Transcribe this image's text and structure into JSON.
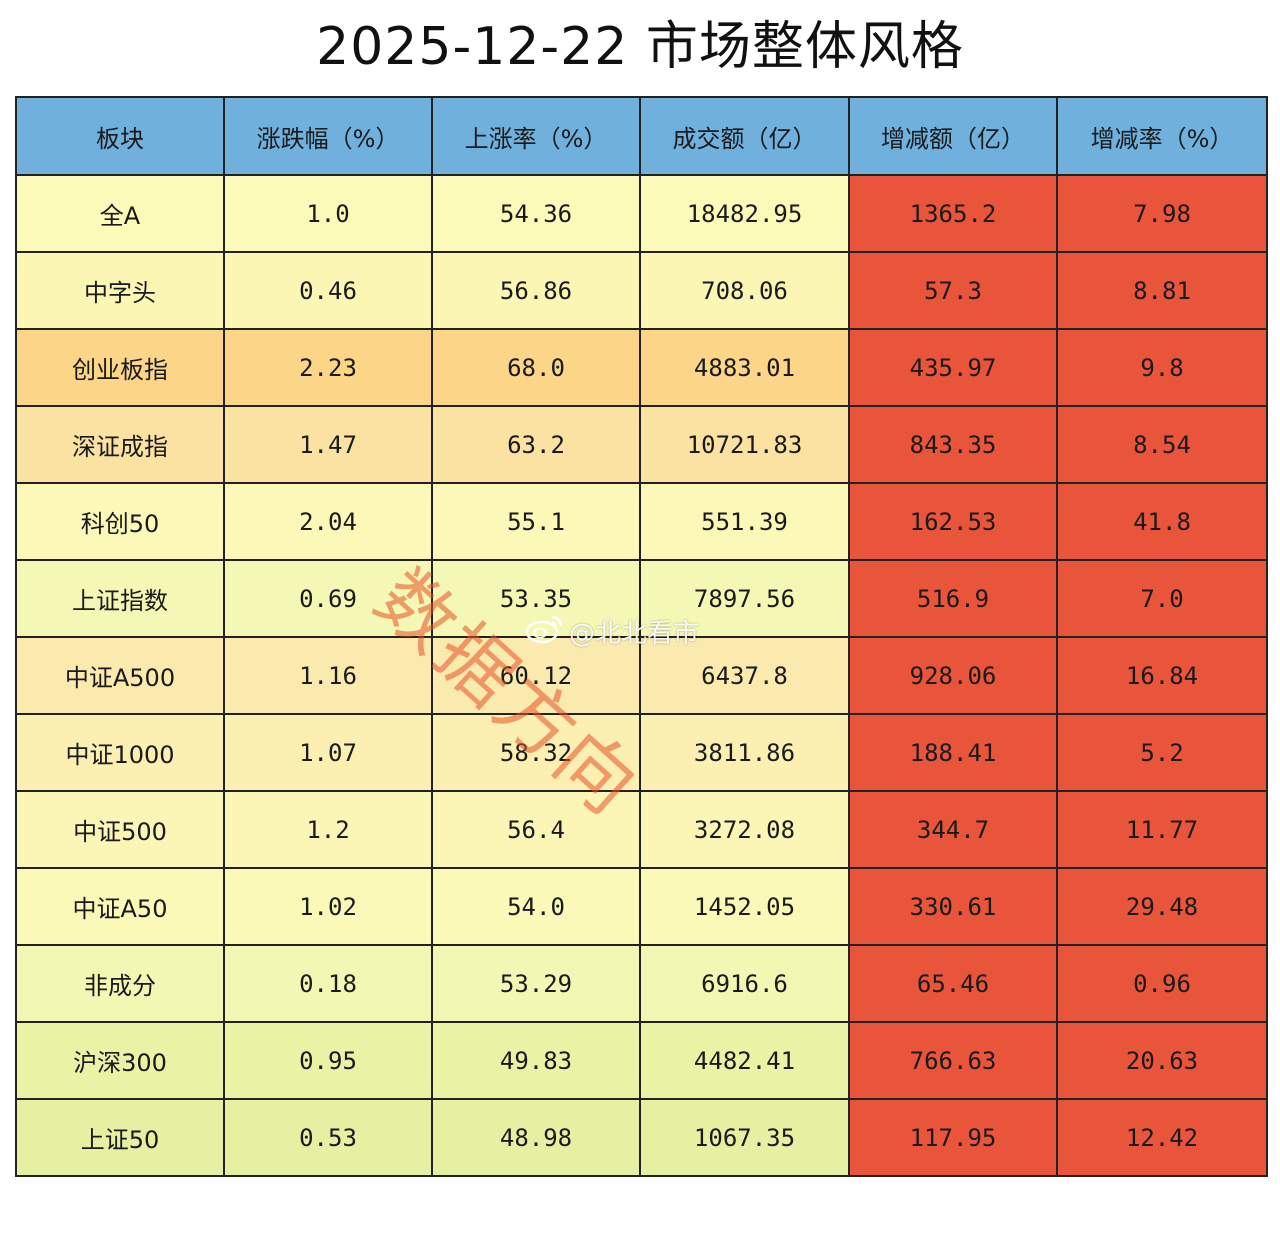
{
  "title": "2025-12-22 市场整体风格",
  "headers": [
    "板块",
    "涨跌幅（%）",
    "上涨率（%）",
    "成交额（亿）",
    "增减额（亿）",
    "增减率（%）"
  ],
  "rows": [
    {
      "name": "全A",
      "change": "1.0",
      "up_rate": "54.36",
      "turnover": "18482.95",
      "delta": "1365.2",
      "delta_rate": "7.98",
      "bg": "#fbfab8"
    },
    {
      "name": "中字头",
      "change": "0.46",
      "up_rate": "56.86",
      "turnover": "708.06",
      "delta": "57.3",
      "delta_rate": "8.81",
      "bg": "#fbf6b4"
    },
    {
      "name": "创业板指",
      "change": "2.23",
      "up_rate": "68.0",
      "turnover": "4883.01",
      "delta": "435.97",
      "delta_rate": "9.8",
      "bg": "#fbd588"
    },
    {
      "name": "深证成指",
      "change": "1.47",
      "up_rate": "63.2",
      "turnover": "10721.83",
      "delta": "843.35",
      "delta_rate": "8.54",
      "bg": "#fbe1a2"
    },
    {
      "name": "科创50",
      "change": "2.04",
      "up_rate": "55.1",
      "turnover": "551.39",
      "delta": "162.53",
      "delta_rate": "41.8",
      "bg": "#fbf8b8"
    },
    {
      "name": "上证指数",
      "change": "0.69",
      "up_rate": "53.35",
      "turnover": "7897.56",
      "delta": "516.9",
      "delta_rate": "7.0",
      "bg": "#f4f8b4"
    },
    {
      "name": "中证A500",
      "change": "1.16",
      "up_rate": "60.12",
      "turnover": "6437.8",
      "delta": "928.06",
      "delta_rate": "16.84",
      "bg": "#fbeaae"
    },
    {
      "name": "中证1000",
      "change": "1.07",
      "up_rate": "58.32",
      "turnover": "3811.86",
      "delta": "188.41",
      "delta_rate": "5.2",
      "bg": "#fbefb2"
    },
    {
      "name": "中证500",
      "change": "1.2",
      "up_rate": "56.4",
      "turnover": "3272.08",
      "delta": "344.7",
      "delta_rate": "11.77",
      "bg": "#fbf6b5"
    },
    {
      "name": "中证A50",
      "change": "1.02",
      "up_rate": "54.0",
      "turnover": "1452.05",
      "delta": "330.61",
      "delta_rate": "29.48",
      "bg": "#fbf9b8"
    },
    {
      "name": "非成分",
      "change": "0.18",
      "up_rate": "53.29",
      "turnover": "6916.6",
      "delta": "65.46",
      "delta_rate": "0.96",
      "bg": "#f3f7b4"
    },
    {
      "name": "沪深300",
      "change": "0.95",
      "up_rate": "49.83",
      "turnover": "4482.41",
      "delta": "766.63",
      "delta_rate": "20.63",
      "bg": "#eaf2a6"
    },
    {
      "name": "上证50",
      "change": "0.53",
      "up_rate": "48.98",
      "turnover": "1067.35",
      "delta": "117.95",
      "delta_rate": "12.42",
      "bg": "#e6f0a2"
    }
  ],
  "colors": {
    "header": "#6fb0dd",
    "delta_cells": "#e9553a",
    "border": "#222222"
  },
  "watermark": "数据方向",
  "weibo_handle": "@北北看市",
  "weibo_icon": "weibo-logo-icon"
}
